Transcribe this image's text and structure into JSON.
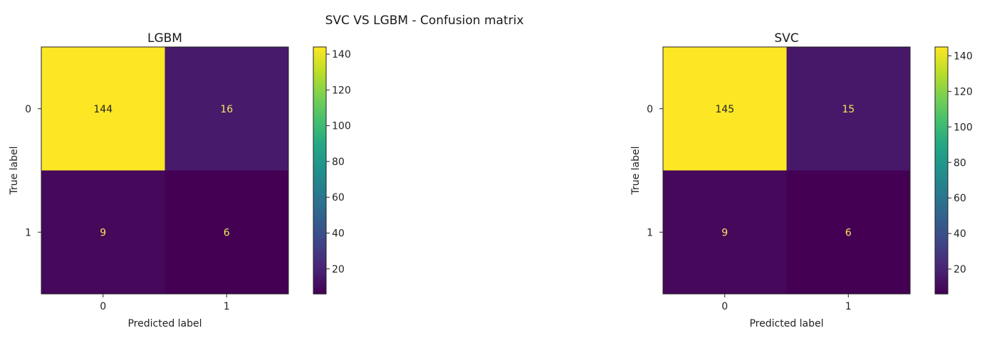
{
  "figure": {
    "suptitle": "SVC VS LGBM - Confusion matrix"
  },
  "chart_data": [
    {
      "type": "heatmap",
      "title": "LGBM",
      "xlabel": "Predicted label",
      "ylabel": "True label",
      "x_ticks": [
        "0",
        "1"
      ],
      "y_ticks": [
        "0",
        "1"
      ],
      "matrix": [
        [
          144,
          16
        ],
        [
          9,
          6
        ]
      ],
      "colormap": "viridis",
      "colorbar": {
        "min": 6,
        "max": 144,
        "ticks": [
          20,
          40,
          60,
          80,
          100,
          120,
          140
        ]
      },
      "grid": false
    },
    {
      "type": "heatmap",
      "title": "SVC",
      "xlabel": "Predicted label",
      "ylabel": "True label",
      "x_ticks": [
        "0",
        "1"
      ],
      "y_ticks": [
        "0",
        "1"
      ],
      "matrix": [
        [
          145,
          15
        ],
        [
          9,
          6
        ]
      ],
      "colormap": "viridis",
      "colorbar": {
        "min": 6,
        "max": 145,
        "ticks": [
          20,
          40,
          60,
          80,
          100,
          120,
          140
        ]
      },
      "grid": false
    }
  ]
}
